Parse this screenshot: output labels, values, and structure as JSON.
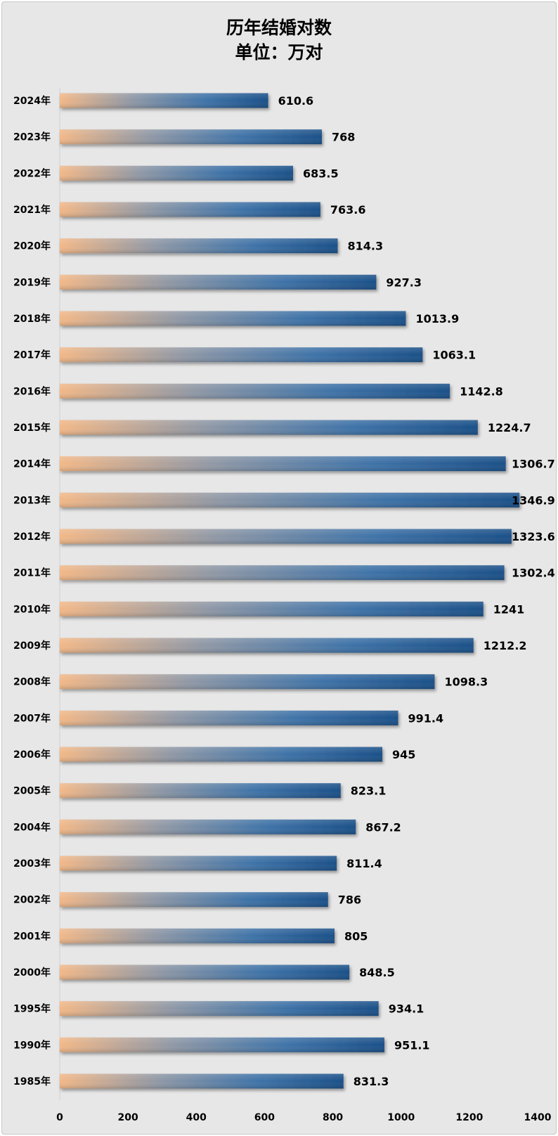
{
  "chart_data": {
    "type": "bar",
    "orientation": "horizontal",
    "title": "历年结婚对数",
    "subtitle": "单位：万对",
    "categories": [
      "2024年",
      "2023年",
      "2022年",
      "2021年",
      "2020年",
      "2019年",
      "2018年",
      "2017年",
      "2016年",
      "2015年",
      "2014年",
      "2013年",
      "2012年",
      "2011年",
      "2010年",
      "2009年",
      "2008年",
      "2007年",
      "2006年",
      "2005年",
      "2004年",
      "2003年",
      "2002年",
      "2001年",
      "2000年",
      "1995年",
      "1990年",
      "1985年"
    ],
    "values": [
      610.6,
      768,
      683.5,
      763.6,
      814.3,
      927.3,
      1013.9,
      1063.1,
      1142.8,
      1224.7,
      1306.7,
      1346.9,
      1323.6,
      1302.4,
      1241,
      1212.2,
      1098.3,
      991.4,
      945,
      823.1,
      867.2,
      811.4,
      786,
      805,
      848.5,
      934.1,
      951.1,
      831.3
    ],
    "value_labels": [
      "610.6",
      "768",
      "683.5",
      "763.6",
      "814.3",
      "927.3",
      "1013.9",
      "1063.1",
      "1142.8",
      "1224.7",
      "1306.7",
      "1346.9",
      "1323.6",
      "1302.4",
      "1241",
      "1212.2",
      "1098.3",
      "991.4",
      "945",
      "823.1",
      "867.2",
      "811.4",
      "786",
      "805",
      "848.5",
      "934.1",
      "951.1",
      "831.3"
    ],
    "xlim": [
      0,
      1400
    ],
    "xticks": [
      "0",
      "200",
      "400",
      "600",
      "800",
      "1000",
      "1200",
      "1400"
    ],
    "grid": false,
    "legend": "none",
    "colors": {
      "bar_start": "#f2b888",
      "bar_mid": "#8898aa",
      "bar_end": "#1d578f",
      "background": "#e7e7e7"
    }
  }
}
